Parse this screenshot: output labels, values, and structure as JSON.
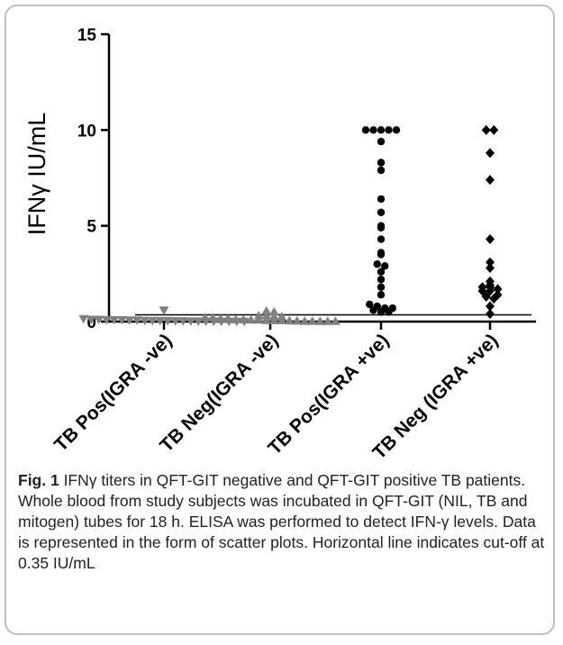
{
  "figure": {
    "caption_label": "Fig. 1",
    "caption_text": " IFNγ titers in QFT-GIT negative and QFT-GIT positive TB patients. Whole blood from study subjects was incubated in QFT-GIT (NIL, TB and mitogen) tubes for 18 h. ELISA was performed to detect IFN-γ levels. Data is represented in the form of scatter plots. Horizontal line indicates cut-off at 0.35 IU/mL"
  },
  "chart_data": {
    "type": "scatter",
    "title": "",
    "xlabel": "",
    "ylabel": "IFNγ IU/mL",
    "ylim": [
      0,
      15
    ],
    "yticks": [
      0,
      5,
      10,
      15
    ],
    "cutoff": 0.35,
    "categories": [
      "TB Pos(IGRA -ve)",
      "TB Neg(IGRA -ve)",
      "TB Pos(IGRA +ve)",
      "TB Neg (IGRA +ve)"
    ],
    "series": [
      {
        "marker": "triangle-down",
        "color": "#808080",
        "values": [
          0.6,
          0.15,
          0.12,
          0.12,
          0.1,
          0.1,
          0.1,
          0.08,
          0.08,
          0.06,
          0.05,
          0.05,
          0.05,
          0.04,
          0.04,
          0.03,
          0.03,
          0.03,
          0.02,
          0.02,
          0.02,
          0.01,
          0.01
        ]
      },
      {
        "marker": "triangle-up",
        "color": "#808080",
        "values": [
          0.55,
          0.5,
          0.3,
          0.3,
          0.25,
          0.25,
          0.2,
          0.2,
          0.15,
          0.15,
          0.1,
          0.1,
          0.08,
          0.08,
          0.06,
          0.05,
          0.05,
          0.04,
          0.03,
          0.02,
          0.02,
          0.01,
          0.01,
          0.01
        ]
      },
      {
        "marker": "circle",
        "color": "#000000",
        "values": [
          10,
          10,
          10,
          10,
          10,
          9.4,
          8.3,
          7.9,
          6.4,
          5.7,
          5.0,
          4.9,
          4.3,
          3.6,
          3.5,
          3.0,
          2.9,
          2.6,
          2.2,
          1.8,
          1.4,
          0.9,
          0.8,
          0.7,
          0.7,
          0.6,
          0.5,
          0.5
        ]
      },
      {
        "marker": "diamond",
        "color": "#000000",
        "values": [
          10,
          10,
          8.8,
          7.4,
          4.3,
          3.1,
          2.8,
          2.1,
          1.9,
          1.8,
          1.8,
          1.7,
          1.6,
          1.6,
          1.4,
          1.3,
          1.2,
          0.8,
          0.4
        ]
      }
    ]
  }
}
